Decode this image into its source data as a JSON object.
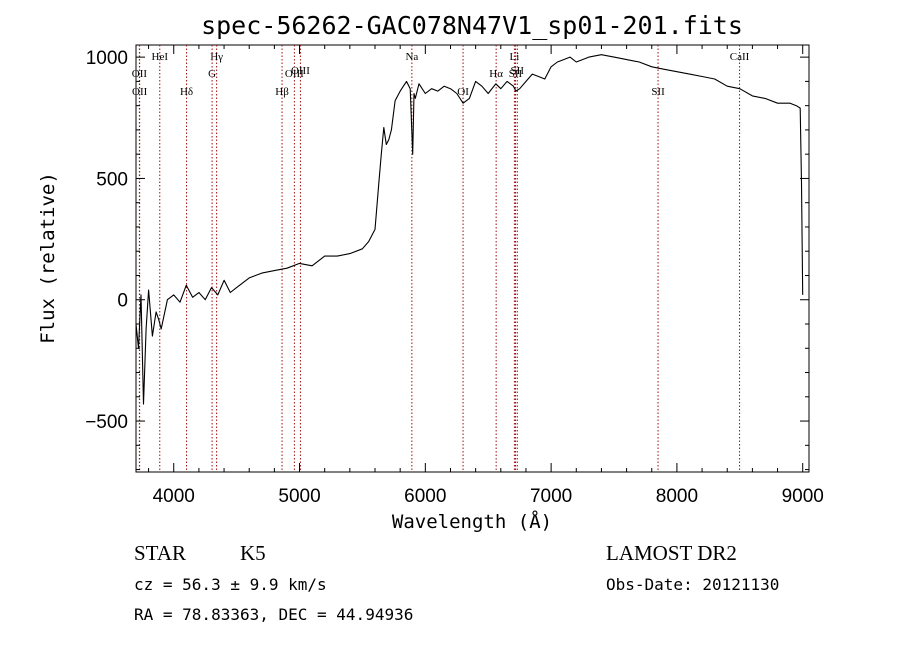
{
  "chart_data": {
    "type": "line",
    "title": "spec-56262-GAC078N47V1_sp01-201.fits",
    "xlabel": "Wavelength (Å)",
    "ylabel": "Flux (relative)",
    "xlim": [
      3700,
      9050
    ],
    "ylim": [
      -710,
      1050
    ],
    "xticks": [
      4000,
      5000,
      6000,
      7000,
      8000,
      9000
    ],
    "xtick_labels": [
      "4000",
      "5000",
      "6000",
      "7000",
      "8000",
      "9000"
    ],
    "yticks": [
      -500,
      0,
      500,
      1000
    ],
    "ytick_labels": [
      "−500",
      "0",
      "500",
      "1000"
    ],
    "series": [
      {
        "name": "spectrum",
        "x": [
          3700,
          3720,
          3740,
          3760,
          3780,
          3800,
          3830,
          3860,
          3880,
          3900,
          3950,
          4000,
          4050,
          4100,
          4150,
          4200,
          4250,
          4300,
          4350,
          4400,
          4450,
          4500,
          4600,
          4700,
          4800,
          4900,
          5000,
          5100,
          5200,
          5300,
          5400,
          5500,
          5550,
          5600,
          5630,
          5650,
          5670,
          5690,
          5710,
          5730,
          5760,
          5800,
          5850,
          5880,
          5900,
          5910,
          5920,
          5950,
          6000,
          6050,
          6100,
          6150,
          6200,
          6250,
          6300,
          6350,
          6400,
          6450,
          6500,
          6560,
          6600,
          6650,
          6700,
          6720,
          6750,
          6800,
          6850,
          6900,
          6950,
          7000,
          7050,
          7100,
          7150,
          7200,
          7300,
          7400,
          7500,
          7600,
          7700,
          7800,
          7900,
          8000,
          8100,
          8200,
          8300,
          8400,
          8500,
          8600,
          8700,
          8800,
          8900,
          8950,
          8980,
          8990,
          9000
        ],
        "y": [
          -100,
          -200,
          20,
          -430,
          -120,
          40,
          -150,
          -50,
          -80,
          -120,
          0,
          20,
          -10,
          60,
          10,
          30,
          0,
          50,
          20,
          80,
          30,
          50,
          90,
          110,
          120,
          130,
          150,
          140,
          180,
          180,
          190,
          210,
          240,
          290,
          480,
          600,
          710,
          640,
          660,
          700,
          820,
          860,
          900,
          870,
          600,
          850,
          830,
          890,
          850,
          870,
          860,
          880,
          870,
          850,
          810,
          830,
          900,
          880,
          850,
          890,
          870,
          900,
          880,
          860,
          870,
          900,
          930,
          920,
          910,
          960,
          980,
          990,
          1000,
          980,
          1000,
          1010,
          1000,
          990,
          980,
          960,
          950,
          940,
          930,
          920,
          910,
          880,
          870,
          840,
          830,
          810,
          810,
          800,
          790,
          480,
          20
        ]
      }
    ],
    "lines": [
      {
        "label": "OII",
        "x": 3727,
        "row": 2
      },
      {
        "label": "OII",
        "x": 3729,
        "row": 3
      },
      {
        "label": "HeI",
        "x": 3889,
        "row": 1
      },
      {
        "label": "Hδ",
        "x": 4102,
        "row": 3
      },
      {
        "label": "Hγ",
        "x": 4341,
        "row": 1
      },
      {
        "label": "G",
        "x": 4305,
        "row": 2
      },
      {
        "label": "Hβ",
        "x": 4861,
        "row": 3
      },
      {
        "label": "OIII",
        "x": 4959,
        "row": 2
      },
      {
        "label": "OIII",
        "x": 5007,
        "row": 0
      },
      {
        "label": "Na",
        "x": 5893,
        "row": 1
      },
      {
        "label": "OI",
        "x": 6300,
        "row": 3
      },
      {
        "label": "Hα",
        "x": 6563,
        "row": 2
      },
      {
        "label": "Li",
        "x": 6708,
        "row": 1
      },
      {
        "label": "SII",
        "x": 6717,
        "row": 2
      },
      {
        "label": "SII",
        "x": 6731,
        "row": 0
      },
      {
        "label": "SII",
        "x": 7850,
        "row": 3
      },
      {
        "label": "CaII",
        "x": 8498,
        "row": 1
      }
    ],
    "line_color": "#a01010",
    "grid": false
  },
  "footer": {
    "object_class": "STAR",
    "subclass": "K5",
    "survey": "LAMOST DR2",
    "redshift": "cz =  56.3 ±  9.9 km/s",
    "obs_date": "Obs-Date: 20121130",
    "coords": "RA =  78.83363, DEC =  44.94936"
  }
}
